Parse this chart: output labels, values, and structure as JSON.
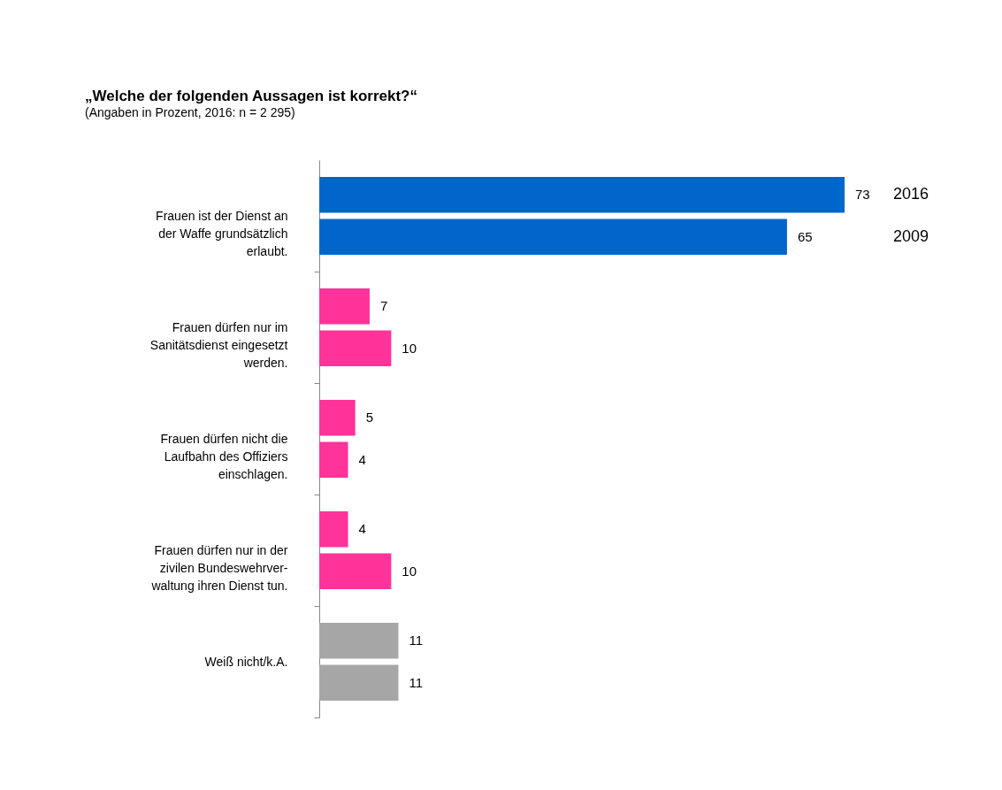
{
  "chart_data": {
    "type": "bar",
    "orientation": "horizontal",
    "title": "„Welche der folgenden Aussagen ist korrekt?“",
    "subtitle": "(Angaben in Prozent, 2016: n = 2 295)",
    "categories": [
      "Frauen ist der Dienst an\nder Waffe grundsätzlich\nerlaubt.",
      "Frauen dürfen nur im\nSanitätsdienst eingesetzt\nwerden.",
      "Frauen dürfen nicht die\nLaufbahn des Offiziers\neinschlagen.",
      "Frauen dürfen nur in der\nzivilen Bundeswehrver-\nwaltung ihren Dienst tun.",
      "Weiß nicht/k.A."
    ],
    "series": [
      {
        "name": "2016",
        "colors": [
          "#0066cc",
          "#ff3399",
          "#ff3399",
          "#ff3399",
          "#a6a6a6"
        ],
        "values": [
          73,
          7,
          5,
          4,
          11
        ]
      },
      {
        "name": "2009",
        "colors": [
          "#0066cc",
          "#ff3399",
          "#ff3399",
          "#ff3399",
          "#a6a6a6"
        ],
        "values": [
          65,
          10,
          4,
          10,
          11
        ]
      }
    ],
    "data_labels": true,
    "legend": false,
    "grid": false
  }
}
